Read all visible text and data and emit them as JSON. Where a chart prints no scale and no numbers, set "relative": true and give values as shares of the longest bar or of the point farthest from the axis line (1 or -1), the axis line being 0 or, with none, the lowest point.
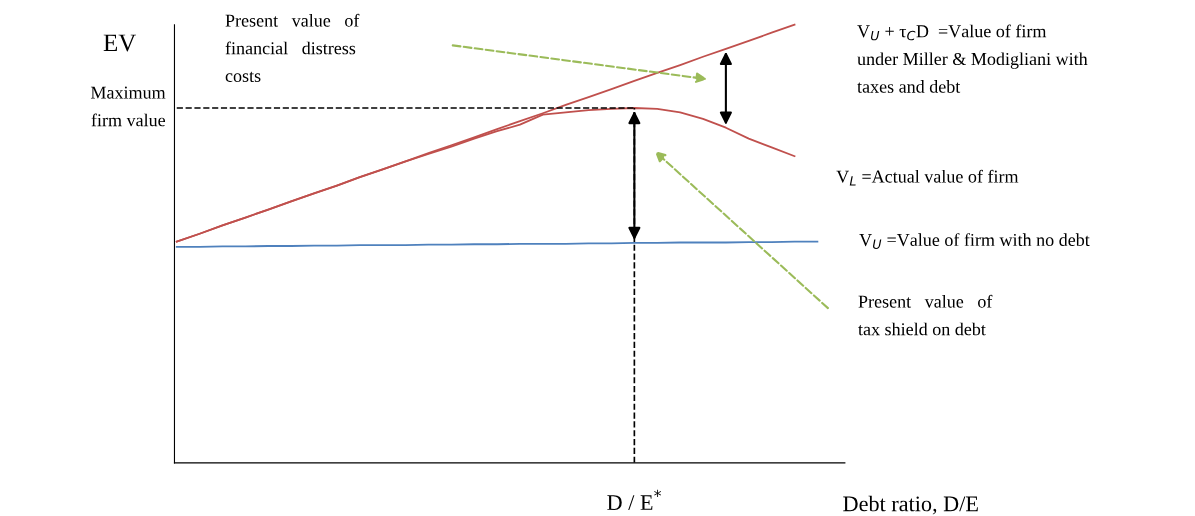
{
  "chart_data": {
    "type": "line",
    "relative": true,
    "ylabel": "EV",
    "xlabel": "Debt ratio, D/E",
    "categories": [
      null,
      null,
      null,
      null,
      null,
      null,
      null,
      null,
      null,
      null,
      null,
      null,
      null,
      null,
      null,
      null,
      null,
      null,
      null,
      null,
      null,
      null,
      null,
      null,
      null,
      null,
      null,
      null,
      null
    ],
    "series": [
      {
        "name": "V$_{U}$ + τ$_{C}$D  =Value of firm\nunder Miller & Modigliani with\ntaxes and debt",
        "color": "#c0504d",
        "values": [
          0.505,
          0.523,
          0.542,
          0.56,
          0.578,
          0.597,
          0.615,
          0.633,
          0.652,
          0.67,
          0.688,
          0.707,
          0.725,
          0.743,
          0.762,
          0.78,
          0.798,
          0.817,
          0.835,
          0.853,
          0.872,
          0.89,
          0.908,
          0.927,
          0.945,
          0.963,
          0.982,
          1.0,
          null
        ]
      },
      {
        "name": "V$_{L}$ =Actual value of firm",
        "color": "#c0504d",
        "values": [
          0.505,
          0.523,
          0.542,
          0.56,
          0.578,
          0.597,
          0.615,
          0.633,
          0.652,
          0.67,
          0.688,
          0.705,
          0.722,
          0.74,
          0.757,
          0.772,
          0.795,
          0.8,
          0.805,
          0.808,
          0.81,
          0.808,
          0.8,
          0.785,
          0.765,
          0.74,
          0.72,
          0.7,
          null
        ]
      },
      {
        "name": "V$_{U}$ =Value of firm with no debt",
        "color": "#4f81bd",
        "values": [
          0.493,
          0.493,
          0.494,
          0.494,
          0.495,
          0.495,
          0.496,
          0.496,
          0.497,
          0.497,
          0.497,
          0.498,
          0.498,
          0.499,
          0.499,
          0.5,
          0.5,
          0.5,
          0.501,
          0.501,
          0.502,
          0.502,
          0.503,
          0.503,
          0.503,
          0.504,
          0.504,
          0.505,
          0.505
        ]
      }
    ],
    "ref_lines": [
      {
        "axis": "y",
        "value": 0.81,
        "label": "Maximum\nfirm value",
        "color": "#000000",
        "line_style": "dashed"
      }
    ],
    "annotations": [
      "Present   value   of\nfinancial   distress\ncosts",
      "Present   value   of\ntax shield on debt",
      "D / E$^{*}$"
    ],
    "grid": false,
    "legend": false,
    "marker": "none",
    "line_style": "solid"
  }
}
